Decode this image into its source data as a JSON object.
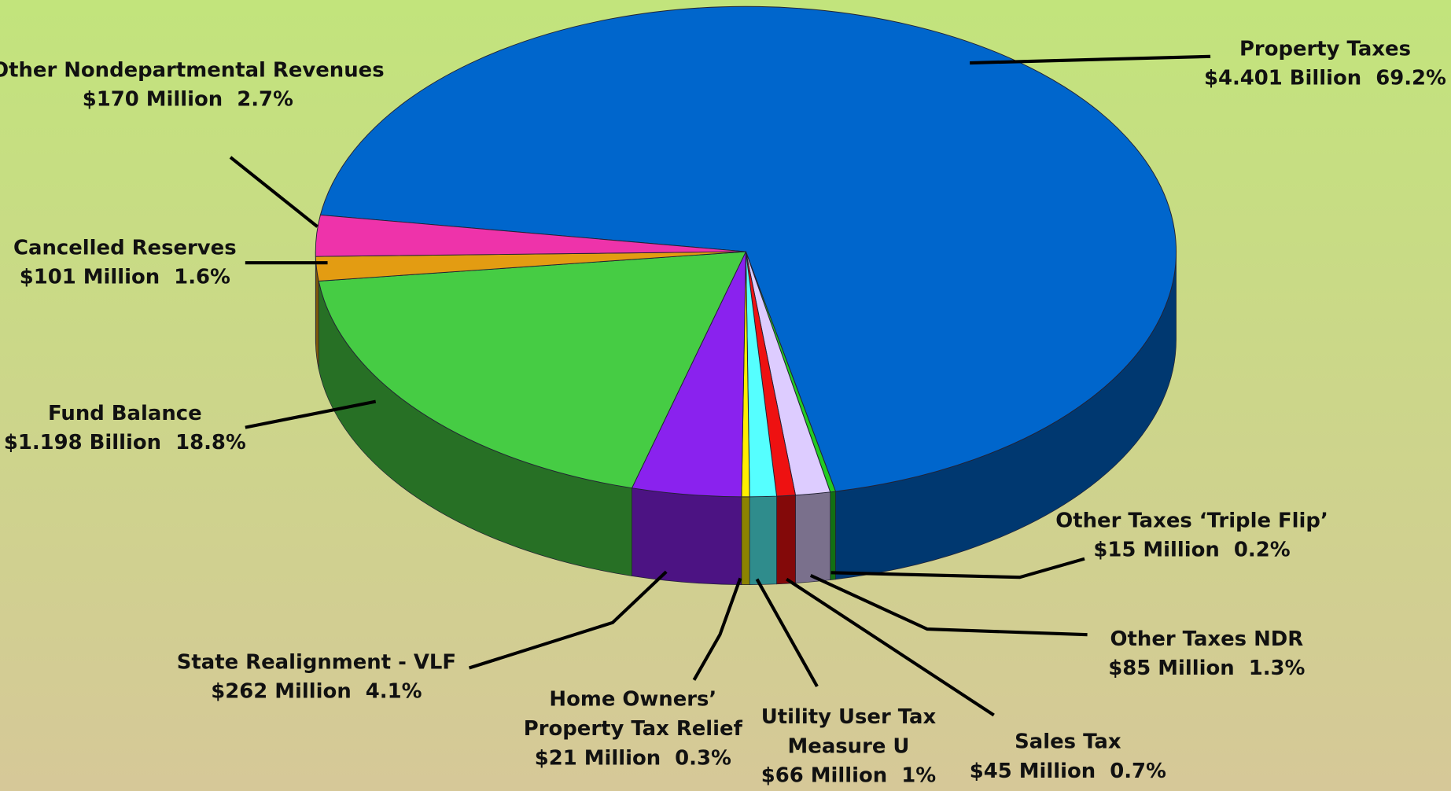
{
  "chart_data": {
    "type": "pie3d",
    "categories": [
      "Property Taxes",
      "Other Taxes ‘Triple Flip’",
      "Other Taxes NDR",
      "Sales Tax",
      "Utility User Tax\nMeasure U",
      "Home Owners’\nProperty Tax Relief",
      "State Realignment - VLF",
      "Fund Balance",
      "Cancelled Reserves",
      "Other Nondepartmental Revenues"
    ],
    "values": [
      69.2,
      0.2,
      1.3,
      0.7,
      1,
      0.3,
      4.1,
      18.8,
      1.6,
      2.7
    ],
    "value_labels": [
      "$4.401 Billion  69.2%",
      "$15 Million  0.2%",
      "$85 Million  1.3%",
      "$45 Million  0.7%",
      "$66 Million  1%",
      "$21 Million  0.3%",
      "$262 Million  4.1%",
      "$1.198 Billion  18.8%",
      "$101 Million  1.6%",
      "$170 Million  2.7%"
    ],
    "colors": [
      "#0066cc",
      "#22cc22",
      "#ddccff",
      "#ee1111",
      "#55ffff",
      "#ffee00",
      "#8a22ee",
      "#46cc44",
      "#e39c12",
      "#ee33aa"
    ]
  }
}
